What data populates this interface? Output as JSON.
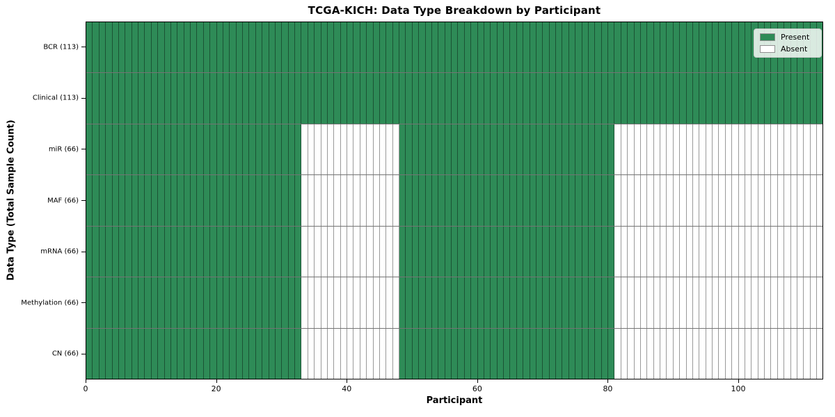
{
  "chart_data": {
    "type": "heatmap",
    "title": "TCGA-KICH: Data Type Breakdown by Participant",
    "xlabel": "Participant",
    "ylabel": "Data Type (Total Sample Count)",
    "x_range": [
      0,
      113
    ],
    "n_participants": 113,
    "x_ticks": [
      0,
      20,
      40,
      60,
      80,
      100
    ],
    "grid": "cell-borders",
    "rows": [
      {
        "label": "BCR (113)",
        "data_type": "BCR",
        "total_samples": 113,
        "present_segments": [
          [
            0,
            113
          ]
        ]
      },
      {
        "label": "Clinical (113)",
        "data_type": "Clinical",
        "total_samples": 113,
        "present_segments": [
          [
            0,
            113
          ]
        ]
      },
      {
        "label": "miR (66)",
        "data_type": "miR",
        "total_samples": 66,
        "present_segments": [
          [
            0,
            33
          ],
          [
            48,
            81
          ]
        ]
      },
      {
        "label": "MAF (66)",
        "data_type": "MAF",
        "total_samples": 66,
        "present_segments": [
          [
            0,
            33
          ],
          [
            48,
            81
          ]
        ]
      },
      {
        "label": "mRNA (66)",
        "data_type": "mRNA",
        "total_samples": 66,
        "present_segments": [
          [
            0,
            33
          ],
          [
            48,
            81
          ]
        ]
      },
      {
        "label": "Methylation (66)",
        "data_type": "Methylation",
        "total_samples": 66,
        "present_segments": [
          [
            0,
            33
          ],
          [
            48,
            81
          ]
        ]
      },
      {
        "label": "CN (66)",
        "data_type": "CN",
        "total_samples": 66,
        "present_segments": [
          [
            0,
            33
          ],
          [
            48,
            81
          ]
        ]
      }
    ],
    "legend": {
      "position": "upper right",
      "items": [
        {
          "label": "Present",
          "color": "#2e8b57"
        },
        {
          "label": "Absent",
          "color": "#ffffff"
        }
      ]
    },
    "colors": {
      "present": "#2e8b57",
      "absent": "#ffffff",
      "cell_edge": "#000000",
      "spine": "#000000",
      "background": "#ffffff"
    }
  }
}
